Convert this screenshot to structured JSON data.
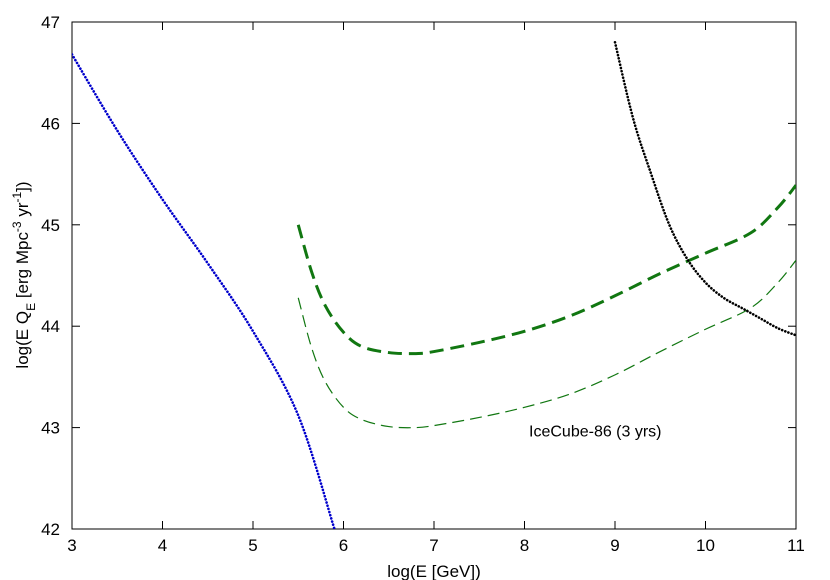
{
  "chart_data": {
    "type": "line",
    "xlabel": "log(E [GeV])",
    "ylabel": {
      "pre": "log(E Q",
      "sub": "E",
      "mid1": " [erg Mpc",
      "sup1": "-3",
      "mid2": " yr",
      "sup2": "-1",
      "post": "])"
    },
    "xlim": [
      3,
      11
    ],
    "ylim": [
      42,
      47
    ],
    "xticks": [
      "3",
      "4",
      "5",
      "6",
      "7",
      "8",
      "9",
      "10",
      "11"
    ],
    "yticks": [
      "42",
      "43",
      "44",
      "45",
      "46",
      "47"
    ],
    "grid": false,
    "annotation": {
      "text": "IceCube-86 (3 yrs)",
      "x": 8.05,
      "y": 42.97
    },
    "series": [
      {
        "style": "dotted",
        "color": "#0000cc",
        "x": [
          3.0,
          3.5,
          4.0,
          4.5,
          5.0,
          5.5,
          5.9
        ],
        "y": [
          46.68,
          45.93,
          45.25,
          44.62,
          43.95,
          43.12,
          42.0
        ]
      },
      {
        "style": "dashed-thick",
        "color": "#117711",
        "x": [
          5.5,
          5.65,
          5.8,
          6.0,
          6.2,
          6.5,
          6.8,
          7.0,
          7.5,
          8.0,
          8.5,
          9.0,
          9.5,
          10.0,
          10.5,
          10.8,
          11.0
        ],
        "y": [
          45.0,
          44.53,
          44.2,
          43.94,
          43.8,
          43.74,
          43.73,
          43.75,
          43.84,
          43.95,
          44.1,
          44.3,
          44.52,
          44.72,
          44.92,
          45.17,
          45.39
        ]
      },
      {
        "style": "dashed-thin",
        "color": "#117711",
        "x": [
          5.5,
          5.65,
          5.8,
          6.0,
          6.2,
          6.5,
          6.8,
          7.0,
          7.5,
          8.0,
          8.5,
          9.0,
          9.5,
          10.0,
          10.5,
          10.8,
          11.0
        ],
        "y": [
          44.28,
          43.78,
          43.45,
          43.2,
          43.08,
          43.01,
          43.0,
          43.02,
          43.1,
          43.2,
          43.33,
          43.52,
          43.75,
          43.97,
          44.18,
          44.43,
          44.65
        ]
      },
      {
        "style": "dotted",
        "color": "#000000",
        "x": [
          9.0,
          9.2,
          9.4,
          9.6,
          9.8,
          10.0,
          10.2,
          10.4,
          10.6,
          10.8,
          11.0
        ],
        "y": [
          46.8,
          46.05,
          45.5,
          45.0,
          44.66,
          44.43,
          44.28,
          44.18,
          44.08,
          43.98,
          43.91
        ]
      }
    ]
  }
}
